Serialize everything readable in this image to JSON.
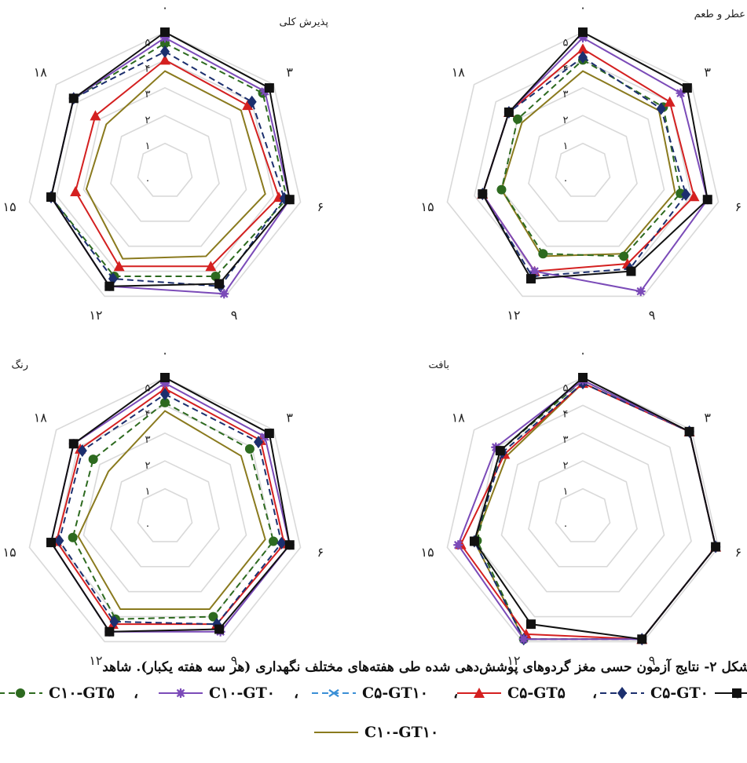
{
  "figure": {
    "caption": "شکل ۲- نتایج آزمون حسی مغز گردوهای پوشش‌دهی شده طی هفته‌های مختلف نگهداری (هر سه هفته یکبار). شاهد",
    "separator": "،"
  },
  "series_styles": [
    {
      "name": "C۱۰-GT۵",
      "color": "#2d6a1f",
      "dash": "8,5",
      "marker": "circle"
    },
    {
      "name": "C۱۰-GT۰",
      "color": "#7b4bb8",
      "dash": "",
      "marker": "star"
    },
    {
      "name": "C۵-GT۱۰",
      "color": "#3a8fd6",
      "dash": "8,5",
      "marker": "xstar"
    },
    {
      "name": "C۵-GT۵",
      "color": "#d42020",
      "dash": "",
      "marker": "triangle"
    },
    {
      "name": "C۵-GT۰",
      "color": "#1c2f6e",
      "dash": "8,5",
      "marker": "diamond"
    },
    {
      "name": "",
      "color": "#111111",
      "dash": "",
      "marker": "square"
    },
    {
      "name": "C۱۰-GT۱۰",
      "color": "#8a7a1e",
      "dash": "",
      "marker": "none"
    }
  ],
  "chart_data": [
    {
      "type": "radar",
      "title": "پذیرش کلی",
      "axes": [
        "۰",
        "۳",
        "۶",
        "۹",
        "۱۲",
        "۱۵",
        "۱۸"
      ],
      "rlabels": [
        "۰",
        "۱",
        "۲",
        "۳",
        "۴",
        "۵"
      ],
      "rmax": 5,
      "series": [
        {
          "values": [
            5.0,
            4.8,
            4.6,
            4.5,
            4.6,
            4.2,
            4.2
          ]
        },
        {
          "values": [
            4.8,
            4.6,
            4.6,
            4.9,
            4.6,
            4.2,
            4.2
          ]
        },
        {
          "values": [
            4.3,
            4.0,
            4.4,
            4.6,
            4.3,
            4.2,
            4.2
          ]
        },
        {
          "values": [
            4.0,
            3.8,
            4.2,
            3.8,
            3.8,
            3.3,
            3.2
          ]
        },
        {
          "values": [
            4.6,
            4.5,
            4.5,
            4.2,
            4.2,
            4.2,
            4.2
          ]
        },
        {
          "values": [
            3.6,
            3.5,
            3.7,
            3.4,
            3.5,
            2.9,
            2.7
          ]
        }
      ]
    },
    {
      "type": "radar",
      "title": "عطر و طعم",
      "axes": [
        "۰",
        "۳",
        "۶",
        "۹",
        "۱۲",
        "۱۵",
        "۱۸"
      ],
      "rlabels": [
        "۰",
        "۱",
        "۲",
        "۳",
        "۴",
        "۵"
      ],
      "rmax": 5,
      "series": [
        {
          "values": [
            5.0,
            4.8,
            4.6,
            4.0,
            4.3,
            3.7,
            3.4
          ]
        },
        {
          "values": [
            4.8,
            4.5,
            4.6,
            4.8,
            4.0,
            3.7,
            3.4
          ]
        },
        {
          "values": [
            4.1,
            3.6,
            3.8,
            3.9,
            4.2,
            3.7,
            3.4
          ]
        },
        {
          "values": [
            4.4,
            4.0,
            4.1,
            3.7,
            4.0,
            3.7,
            3.4
          ]
        },
        {
          "values": [
            4.0,
            3.7,
            3.6,
            3.4,
            3.3,
            3.0,
            3.0
          ]
        },
        {
          "values": [
            3.6,
            3.5,
            3.4,
            3.3,
            3.4,
            3.0,
            2.8
          ]
        }
      ]
    },
    {
      "type": "radar",
      "title": "رنگ",
      "axes": [
        "۰",
        "۳",
        "۶",
        "۹",
        "۱۲",
        "۱۵",
        "۱۸"
      ],
      "rlabels": [
        "۰",
        "۱",
        "۲",
        "۳",
        "۴",
        "۵"
      ],
      "rmax": 5,
      "series": [
        {
          "values": [
            5.0,
            4.8,
            4.6,
            4.5,
            4.6,
            4.2,
            4.2
          ]
        },
        {
          "values": [
            4.8,
            4.6,
            4.6,
            4.6,
            4.6,
            4.2,
            4.2
          ]
        },
        {
          "values": [
            4.4,
            4.3,
            4.3,
            4.3,
            4.2,
            3.9,
            3.8
          ]
        },
        {
          "values": [
            4.6,
            4.4,
            4.4,
            4.3,
            4.3,
            4.0,
            3.9
          ]
        },
        {
          "values": [
            4.1,
            3.9,
            4.0,
            4.0,
            4.1,
            3.4,
            3.3
          ]
        },
        {
          "values": [
            3.8,
            3.5,
            3.7,
            3.7,
            3.7,
            3.2,
            2.6
          ]
        }
      ]
    },
    {
      "type": "radar",
      "title": "بافت",
      "axes": [
        "۰",
        "۳",
        "۶",
        "۹",
        "۱۲",
        "۱۵",
        "۱۸"
      ],
      "rlabels": [
        "۰",
        "۱",
        "۲",
        "۳",
        "۴",
        "۵"
      ],
      "rmax": 5,
      "series": [
        {
          "values": [
            5.0,
            4.9,
            4.9,
            4.9,
            4.3,
            4.0,
            3.8
          ]
        },
        {
          "values": [
            4.9,
            4.9,
            4.9,
            4.9,
            4.9,
            4.6,
            4.0
          ]
        },
        {
          "values": [
            4.8,
            4.9,
            4.9,
            4.9,
            4.9,
            4.0,
            3.7
          ]
        },
        {
          "values": [
            4.8,
            4.9,
            4.9,
            4.9,
            4.7,
            4.5,
            3.6
          ]
        },
        {
          "values": [
            4.9,
            4.9,
            4.9,
            4.9,
            4.9,
            3.9,
            3.8
          ]
        },
        {
          "values": [
            4.8,
            4.9,
            4.9,
            4.9,
            4.9,
            4.0,
            3.5
          ]
        }
      ]
    }
  ]
}
